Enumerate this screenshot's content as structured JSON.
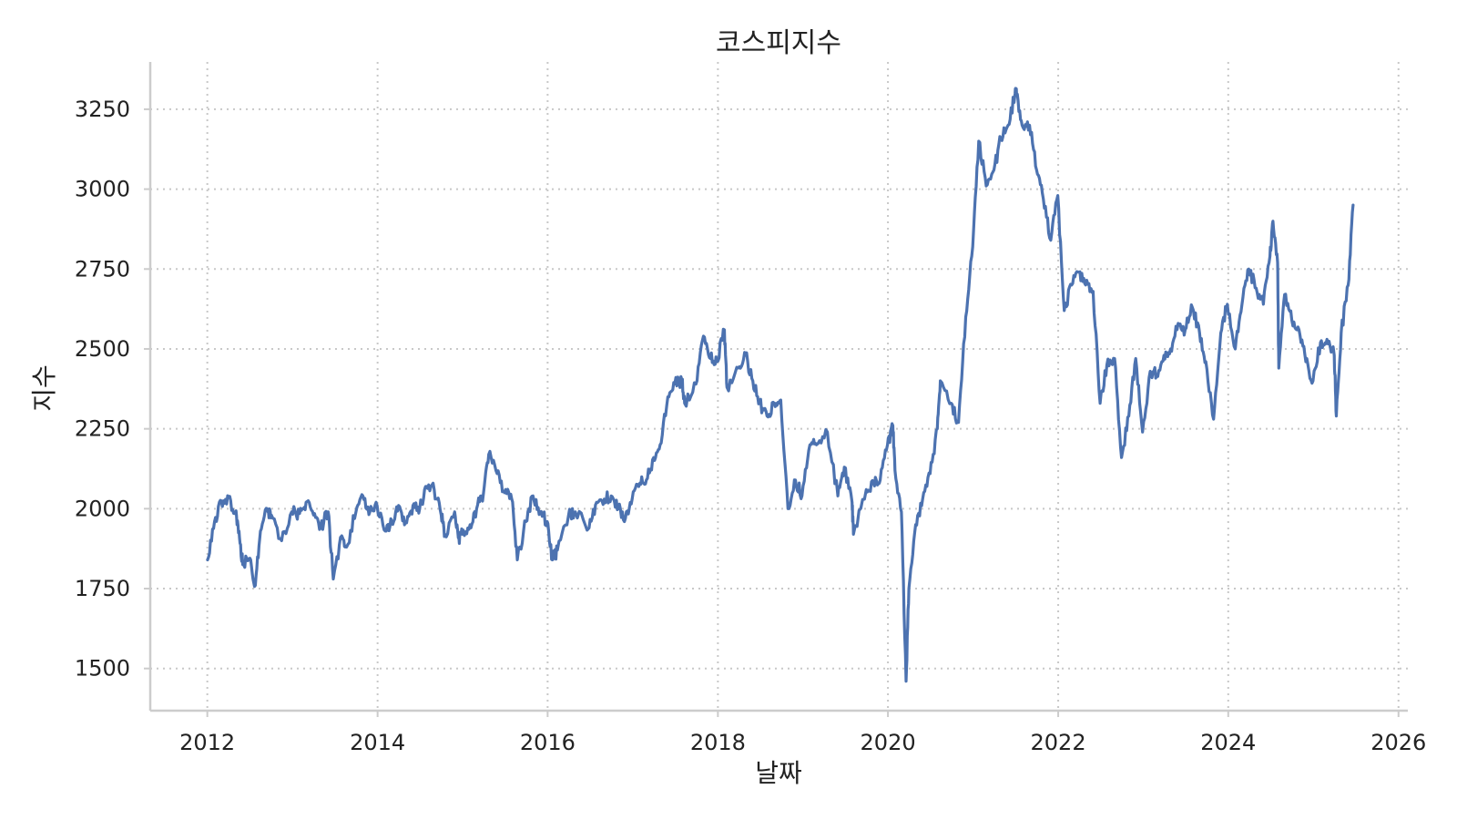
{
  "chart_data": {
    "type": "line",
    "title": "코스피지수",
    "xlabel": "날짜",
    "ylabel": "지수",
    "x_axis_type": "date",
    "xlim": [
      "2011-05-01",
      "2026-02-10"
    ],
    "ylim": [
      1368,
      3398
    ],
    "x_ticks": [
      "2012",
      "2014",
      "2016",
      "2018",
      "2020",
      "2022",
      "2024",
      "2026"
    ],
    "y_ticks": [
      1500,
      1750,
      2000,
      2250,
      2500,
      2750,
      3000,
      3250
    ],
    "grid": true,
    "legend": "none",
    "line_color": "#4c72b0",
    "series": [
      {
        "x": [
          "2012-01-02",
          "2012-02-01",
          "2012-03-01",
          "2012-04-02",
          "2012-05-01",
          "2012-05-16",
          "2012-06-01",
          "2012-07-02",
          "2012-07-25",
          "2012-08-16",
          "2012-09-14",
          "2012-10-02",
          "2012-11-15",
          "2012-12-28",
          "2013-01-31",
          "2013-02-28",
          "2013-04-01",
          "2013-05-01",
          "2013-06-03",
          "2013-06-25",
          "2013-07-31",
          "2013-08-21",
          "2013-09-30",
          "2013-10-30",
          "2013-11-29",
          "2013-12-30",
          "2014-02-03",
          "2014-03-03",
          "2014-04-01",
          "2014-05-01",
          "2014-06-02",
          "2014-07-01",
          "2014-07-30",
          "2014-09-01",
          "2014-10-01",
          "2014-10-17",
          "2014-11-28",
          "2014-12-16",
          "2014-12-30",
          "2015-02-02",
          "2015-03-02",
          "2015-04-01",
          "2015-04-23",
          "2015-05-29",
          "2015-06-30",
          "2015-07-31",
          "2015-08-24",
          "2015-09-30",
          "2015-10-30",
          "2015-11-30",
          "2015-12-30",
          "2016-01-21",
          "2016-02-12",
          "2016-03-31",
          "2016-04-29",
          "2016-06-27",
          "2016-07-29",
          "2016-08-31",
          "2016-09-30",
          "2016-10-31",
          "2016-11-30",
          "2016-12-29",
          "2017-01-31",
          "2017-02-28",
          "2017-03-31",
          "2017-04-28",
          "2017-05-31",
          "2017-06-30",
          "2017-07-31",
          "2017-08-11",
          "2017-09-29",
          "2017-10-31",
          "2017-11-30",
          "2017-12-28",
          "2018-01-29",
          "2018-02-09",
          "2018-03-30",
          "2018-04-30",
          "2018-05-31",
          "2018-06-29",
          "2018-07-31",
          "2018-08-31",
          "2018-09-28",
          "2018-10-29",
          "2018-11-30",
          "2018-12-28",
          "2019-01-31",
          "2019-02-28",
          "2019-04-16",
          "2019-05-31",
          "2019-06-28",
          "2019-07-31",
          "2019-08-06",
          "2019-09-30",
          "2019-10-31",
          "2019-11-29",
          "2019-12-30",
          "2020-01-22",
          "2020-01-31",
          "2020-02-28",
          "2020-03-19",
          "2020-03-31",
          "2020-04-29",
          "2020-05-29",
          "2020-06-30",
          "2020-07-31",
          "2020-08-13",
          "2020-09-29",
          "2020-10-30",
          "2020-11-30",
          "2020-12-30",
          "2021-01-25",
          "2021-02-26",
          "2021-03-31",
          "2021-04-30",
          "2021-05-31",
          "2021-06-30",
          "2021-07-06",
          "2021-07-30",
          "2021-08-31",
          "2021-09-30",
          "2021-10-29",
          "2021-11-30",
          "2021-12-30",
          "2022-01-27",
          "2022-02-28",
          "2022-03-31",
          "2022-04-29",
          "2022-05-31",
          "2022-06-30",
          "2022-07-29",
          "2022-08-31",
          "2022-09-30",
          "2022-10-31",
          "2022-11-30",
          "2022-12-29",
          "2023-01-31",
          "2023-02-28",
          "2023-03-31",
          "2023-04-28",
          "2023-05-31",
          "2023-06-30",
          "2023-07-31",
          "2023-08-31",
          "2023-09-27",
          "2023-10-30",
          "2023-11-30",
          "2023-12-28",
          "2024-01-31",
          "2024-02-29",
          "2024-03-29",
          "2024-04-30",
          "2024-05-31",
          "2024-06-28",
          "2024-07-11",
          "2024-07-31",
          "2024-08-05",
          "2024-08-30",
          "2024-09-30",
          "2024-10-31",
          "2024-11-29",
          "2024-12-30",
          "2025-01-31",
          "2025-02-28",
          "2025-03-31",
          "2025-04-09",
          "2025-04-30",
          "2025-05-30",
          "2025-06-20"
        ],
        "y": [
          1840,
          1960,
          2025,
          2035,
          1985,
          1930,
          1825,
          1845,
          1760,
          1930,
          2000,
          1980,
          1900,
          1990,
          1985,
          2020,
          1980,
          1940,
          1990,
          1780,
          1915,
          1880,
          1990,
          2040,
          1990,
          2010,
          1930,
          1960,
          2010,
          1960,
          2010,
          2000,
          2070,
          2060,
          1980,
          1920,
          1990,
          1910,
          1920,
          1950,
          2000,
          2050,
          2170,
          2110,
          2050,
          2030,
          1840,
          1960,
          2040,
          1990,
          1960,
          1840,
          1870,
          1980,
          1990,
          1940,
          2020,
          2030,
          2040,
          2000,
          1970,
          2030,
          2080,
          2090,
          2160,
          2200,
          2350,
          2390,
          2400,
          2330,
          2390,
          2540,
          2470,
          2460,
          2560,
          2380,
          2440,
          2480,
          2400,
          2330,
          2290,
          2330,
          2340,
          2000,
          2090,
          2040,
          2200,
          2200,
          2240,
          2040,
          2130,
          2020,
          1920,
          2060,
          2080,
          2090,
          2200,
          2260,
          2120,
          1990,
          1460,
          1750,
          1950,
          2030,
          2110,
          2250,
          2400,
          2330,
          2270,
          2600,
          2820,
          3150,
          3010,
          3060,
          3160,
          3200,
          3300,
          3300,
          3200,
          3200,
          3060,
          2970,
          2840,
          2980,
          2620,
          2700,
          2740,
          2700,
          2680,
          2330,
          2450,
          2470,
          2160,
          2290,
          2470,
          2240,
          2430,
          2420,
          2480,
          2500,
          2580,
          2560,
          2630,
          2550,
          2460,
          2280,
          2550,
          2640,
          2500,
          2640,
          2750,
          2690,
          2640,
          2790,
          2900,
          2770,
          2440,
          2670,
          2590,
          2560,
          2460,
          2400,
          2520,
          2530,
          2480,
          2290,
          2550,
          2700,
          2950
        ]
      }
    ]
  }
}
